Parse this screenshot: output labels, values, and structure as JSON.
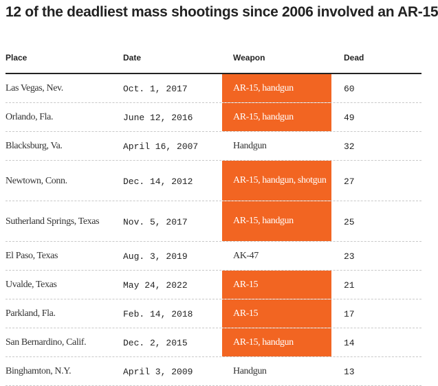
{
  "title": "12 of the deadliest mass shootings since 2006 involved an AR-15",
  "colors": {
    "highlight": "#f26522",
    "header_rule": "#222222"
  },
  "chart_data": {
    "type": "table",
    "columns": [
      "Place",
      "Date",
      "Weapon",
      "Dead"
    ],
    "rows": [
      {
        "place": "Las Vegas, Nev.",
        "date": "Oct. 1, 2017",
        "weapon": "AR-15, handgun",
        "dead": 60,
        "ar15": true
      },
      {
        "place": "Orlando, Fla.",
        "date": "June 12, 2016",
        "weapon": "AR-15, handgun",
        "dead": 49,
        "ar15": true
      },
      {
        "place": "Blacksburg, Va.",
        "date": "April 16, 2007",
        "weapon": "Handgun",
        "dead": 32,
        "ar15": false
      },
      {
        "place": "Newtown, Conn.",
        "date": "Dec. 14, 2012",
        "weapon": "AR-15, handgun, shotgun",
        "dead": 27,
        "ar15": true
      },
      {
        "place": "Sutherland Springs, Texas",
        "date": "Nov. 5, 2017",
        "weapon": "AR-15, handgun",
        "dead": 25,
        "ar15": true
      },
      {
        "place": "El Paso, Texas",
        "date": "Aug. 3, 2019",
        "weapon": "AK-47",
        "dead": 23,
        "ar15": false
      },
      {
        "place": "Uvalde, Texas",
        "date": "May 24, 2022",
        "weapon": "AR-15",
        "dead": 21,
        "ar15": true
      },
      {
        "place": "Parkland, Fla.",
        "date": "Feb. 14, 2018",
        "weapon": "AR-15",
        "dead": 17,
        "ar15": true
      },
      {
        "place": "San Bernardino, Calif.",
        "date": "Dec. 2, 2015",
        "weapon": "AR-15, handgun",
        "dead": 14,
        "ar15": true
      },
      {
        "place": "Binghamton, N.Y.",
        "date": "April 3, 2009",
        "weapon": "Handgun",
        "dead": 13,
        "ar15": false
      }
    ]
  }
}
